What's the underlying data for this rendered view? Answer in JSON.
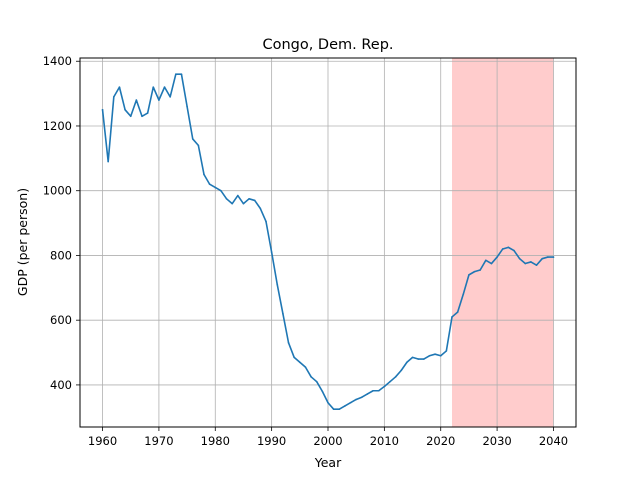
{
  "chart_data": {
    "type": "line",
    "title": "Congo, Dem. Rep.",
    "xlabel": "Year",
    "ylabel": "GDP (per person)",
    "xlim": [
      1956,
      2044
    ],
    "ylim": [
      270,
      1410
    ],
    "xticks": [
      1960,
      1970,
      1980,
      1990,
      2000,
      2010,
      2020,
      2030,
      2040
    ],
    "yticks": [
      400,
      600,
      800,
      1000,
      1200,
      1400
    ],
    "grid": true,
    "line_color": "#1f77b4",
    "highlight": {
      "x_range": [
        2022,
        2040
      ],
      "color": "#ffcccc"
    },
    "series": [
      {
        "x": [
          1960,
          1961,
          1962,
          1963,
          1964,
          1965,
          1966,
          1967,
          1968,
          1969,
          1970,
          1971,
          1972,
          1973,
          1974,
          1975,
          1976,
          1977,
          1978,
          1979,
          1980,
          1981,
          1982,
          1983,
          1984,
          1985,
          1986,
          1987,
          1988,
          1989,
          1990,
          1991,
          1992,
          1993,
          1994,
          1995,
          1996,
          1997,
          1998,
          1999,
          2000,
          2001,
          2002,
          2003,
          2004,
          2005,
          2006,
          2007,
          2008,
          2009,
          2010,
          2011,
          2012,
          2013,
          2014,
          2015,
          2016,
          2017,
          2018,
          2019,
          2020,
          2021,
          2022,
          2023,
          2024,
          2025,
          2026,
          2027,
          2028,
          2029,
          2030,
          2031,
          2032,
          2033,
          2034,
          2035,
          2036,
          2037,
          2038,
          2039,
          2040
        ],
        "values": [
          1250,
          1090,
          1290,
          1320,
          1250,
          1230,
          1280,
          1230,
          1240,
          1320,
          1280,
          1320,
          1290,
          1360,
          1360,
          1260,
          1160,
          1140,
          1050,
          1020,
          1010,
          1000,
          975,
          960,
          985,
          960,
          975,
          970,
          945,
          905,
          810,
          710,
          620,
          530,
          485,
          470,
          455,
          425,
          410,
          380,
          345,
          325,
          325,
          335,
          345,
          355,
          362,
          372,
          382,
          382,
          395,
          410,
          425,
          445,
          470,
          485,
          480,
          480,
          490,
          495,
          490,
          505,
          610,
          625,
          680,
          740,
          750,
          755,
          785,
          775,
          795,
          820,
          825,
          815,
          790,
          775,
          780,
          770,
          790,
          795,
          795
        ]
      }
    ]
  }
}
